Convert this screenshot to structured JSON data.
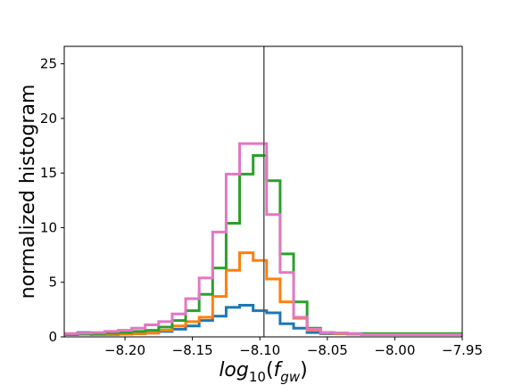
{
  "chart_data": {
    "type": "histogram",
    "xlabel": "log10(f_gw)",
    "xlabel_parts": {
      "base": "log",
      "base_sub": "10",
      "open": "(",
      "var": "f",
      "var_sub": "gw",
      "close": ")"
    },
    "ylabel": "normalized histogram",
    "xlim": [
      -8.245,
      -7.95
    ],
    "ylim": [
      0,
      26.6
    ],
    "xticks": [
      -8.2,
      -8.15,
      -8.1,
      -8.05,
      -8.0,
      -7.95
    ],
    "xtick_labels": [
      "−8.20",
      "−8.15",
      "−8.10",
      "−8.05",
      "−8.00",
      "−7.95"
    ],
    "yticks": [
      0,
      5,
      10,
      15,
      20,
      25
    ],
    "ytick_labels": [
      "0",
      "5",
      "10",
      "15",
      "20",
      "25"
    ],
    "vline": -8.097,
    "vline_color": "#555555",
    "grid": false,
    "series": [
      {
        "color": "#1f77b4",
        "edges": [
          -8.245,
          -8.235,
          -8.225,
          -8.215,
          -8.205,
          -8.195,
          -8.185,
          -8.175,
          -8.165,
          -8.155,
          -8.145,
          -8.135,
          -8.125,
          -8.115,
          -8.105,
          -8.095,
          -8.085,
          -8.075,
          -8.065,
          -8.055,
          -8.045,
          -8.035,
          -8.025,
          -7.95
        ],
        "values": [
          0.2,
          0.4,
          0.35,
          0.3,
          0.3,
          0.3,
          0.35,
          0.5,
          0.7,
          1.0,
          1.5,
          1.9,
          2.7,
          2.9,
          2.4,
          2.2,
          1.2,
          0.8,
          0.4,
          0.3,
          0.3,
          0.3,
          0.25
        ]
      },
      {
        "color": "#ff7f0e",
        "edges": [
          -8.245,
          -8.235,
          -8.225,
          -8.215,
          -8.205,
          -8.195,
          -8.185,
          -8.175,
          -8.165,
          -8.155,
          -8.145,
          -8.135,
          -8.125,
          -8.115,
          -8.105,
          -8.095,
          -8.085,
          -8.075,
          -8.065,
          -8.055,
          -8.045,
          -8.035,
          -8.025,
          -7.95
        ],
        "values": [
          0.3,
          0.25,
          0.2,
          0.2,
          0.25,
          0.3,
          0.35,
          0.6,
          1.0,
          1.4,
          1.8,
          3.7,
          6.1,
          7.7,
          7.0,
          5.3,
          3.2,
          1.7,
          0.6,
          0.35,
          0.3,
          0.25,
          0.3
        ]
      },
      {
        "color": "#2ca02c",
        "edges": [
          -8.245,
          -8.235,
          -8.225,
          -8.215,
          -8.205,
          -8.195,
          -8.185,
          -8.175,
          -8.165,
          -8.155,
          -8.145,
          -8.135,
          -8.125,
          -8.115,
          -8.105,
          -8.095,
          -8.085,
          -8.075,
          -8.065,
          -8.055,
          -8.045,
          -8.035,
          -8.025,
          -7.95
        ],
        "values": [
          0.2,
          0.25,
          0.3,
          0.35,
          0.4,
          0.5,
          0.6,
          0.9,
          1.5,
          2.4,
          3.9,
          6.3,
          10.4,
          14.9,
          16.6,
          14.3,
          7.6,
          3.2,
          0.8,
          0.4,
          0.35,
          0.3,
          0.3
        ]
      },
      {
        "color": "#e377c2",
        "edges": [
          -8.245,
          -8.235,
          -8.225,
          -8.215,
          -8.205,
          -8.195,
          -8.185,
          -8.175,
          -8.165,
          -8.155,
          -8.145,
          -8.135,
          -8.125,
          -8.115,
          -8.105,
          -8.095,
          -8.085,
          -8.075,
          -8.065,
          -8.055,
          -8.045,
          -8.035,
          -8.025,
          -7.95
        ],
        "values": [
          0.3,
          0.35,
          0.4,
          0.5,
          0.6,
          0.8,
          1.1,
          1.4,
          2.1,
          3.5,
          5.4,
          9.6,
          14.9,
          17.7,
          17.7,
          11.2,
          5.9,
          1.8,
          0.7,
          0.4,
          0.35,
          0.3,
          0.2
        ]
      }
    ]
  }
}
